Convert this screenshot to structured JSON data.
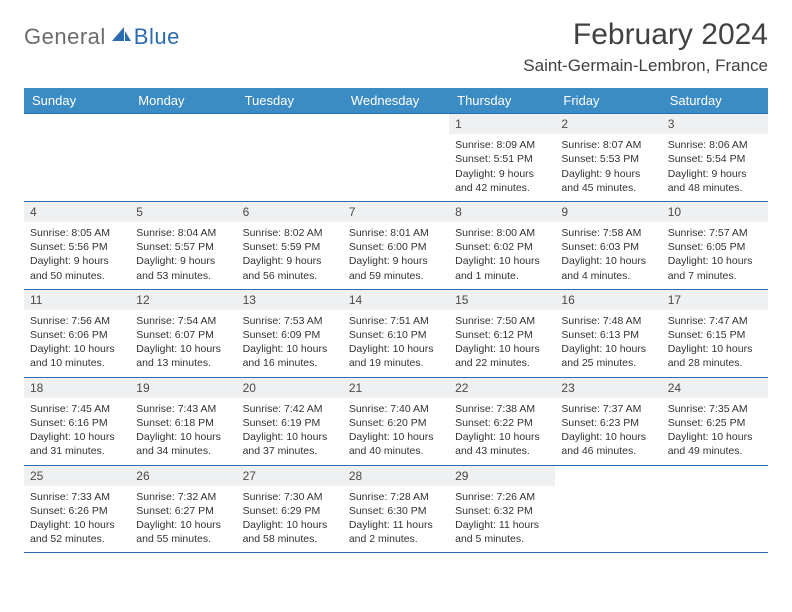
{
  "logo": {
    "general": "General",
    "blue": "Blue"
  },
  "title": "February 2024",
  "location": "Saint-Germain-Lembron, France",
  "colors": {
    "header_bg": "#3b8bc4",
    "header_text": "#ffffff",
    "border": "#2b6cb0",
    "daynum_bg": "#eef0f1",
    "text": "#333333",
    "title_text": "#414141"
  },
  "weekdays": [
    "Sunday",
    "Monday",
    "Tuesday",
    "Wednesday",
    "Thursday",
    "Friday",
    "Saturday"
  ],
  "weeks": [
    {
      "nums": [
        "",
        "",
        "",
        "",
        "1",
        "2",
        "3"
      ],
      "cells": [
        null,
        null,
        null,
        null,
        {
          "sunrise": "Sunrise: 8:09 AM",
          "sunset": "Sunset: 5:51 PM",
          "day1": "Daylight: 9 hours",
          "day2": "and 42 minutes."
        },
        {
          "sunrise": "Sunrise: 8:07 AM",
          "sunset": "Sunset: 5:53 PM",
          "day1": "Daylight: 9 hours",
          "day2": "and 45 minutes."
        },
        {
          "sunrise": "Sunrise: 8:06 AM",
          "sunset": "Sunset: 5:54 PM",
          "day1": "Daylight: 9 hours",
          "day2": "and 48 minutes."
        }
      ]
    },
    {
      "nums": [
        "4",
        "5",
        "6",
        "7",
        "8",
        "9",
        "10"
      ],
      "cells": [
        {
          "sunrise": "Sunrise: 8:05 AM",
          "sunset": "Sunset: 5:56 PM",
          "day1": "Daylight: 9 hours",
          "day2": "and 50 minutes."
        },
        {
          "sunrise": "Sunrise: 8:04 AM",
          "sunset": "Sunset: 5:57 PM",
          "day1": "Daylight: 9 hours",
          "day2": "and 53 minutes."
        },
        {
          "sunrise": "Sunrise: 8:02 AM",
          "sunset": "Sunset: 5:59 PM",
          "day1": "Daylight: 9 hours",
          "day2": "and 56 minutes."
        },
        {
          "sunrise": "Sunrise: 8:01 AM",
          "sunset": "Sunset: 6:00 PM",
          "day1": "Daylight: 9 hours",
          "day2": "and 59 minutes."
        },
        {
          "sunrise": "Sunrise: 8:00 AM",
          "sunset": "Sunset: 6:02 PM",
          "day1": "Daylight: 10 hours",
          "day2": "and 1 minute."
        },
        {
          "sunrise": "Sunrise: 7:58 AM",
          "sunset": "Sunset: 6:03 PM",
          "day1": "Daylight: 10 hours",
          "day2": "and 4 minutes."
        },
        {
          "sunrise": "Sunrise: 7:57 AM",
          "sunset": "Sunset: 6:05 PM",
          "day1": "Daylight: 10 hours",
          "day2": "and 7 minutes."
        }
      ]
    },
    {
      "nums": [
        "11",
        "12",
        "13",
        "14",
        "15",
        "16",
        "17"
      ],
      "cells": [
        {
          "sunrise": "Sunrise: 7:56 AM",
          "sunset": "Sunset: 6:06 PM",
          "day1": "Daylight: 10 hours",
          "day2": "and 10 minutes."
        },
        {
          "sunrise": "Sunrise: 7:54 AM",
          "sunset": "Sunset: 6:07 PM",
          "day1": "Daylight: 10 hours",
          "day2": "and 13 minutes."
        },
        {
          "sunrise": "Sunrise: 7:53 AM",
          "sunset": "Sunset: 6:09 PM",
          "day1": "Daylight: 10 hours",
          "day2": "and 16 minutes."
        },
        {
          "sunrise": "Sunrise: 7:51 AM",
          "sunset": "Sunset: 6:10 PM",
          "day1": "Daylight: 10 hours",
          "day2": "and 19 minutes."
        },
        {
          "sunrise": "Sunrise: 7:50 AM",
          "sunset": "Sunset: 6:12 PM",
          "day1": "Daylight: 10 hours",
          "day2": "and 22 minutes."
        },
        {
          "sunrise": "Sunrise: 7:48 AM",
          "sunset": "Sunset: 6:13 PM",
          "day1": "Daylight: 10 hours",
          "day2": "and 25 minutes."
        },
        {
          "sunrise": "Sunrise: 7:47 AM",
          "sunset": "Sunset: 6:15 PM",
          "day1": "Daylight: 10 hours",
          "day2": "and 28 minutes."
        }
      ]
    },
    {
      "nums": [
        "18",
        "19",
        "20",
        "21",
        "22",
        "23",
        "24"
      ],
      "cells": [
        {
          "sunrise": "Sunrise: 7:45 AM",
          "sunset": "Sunset: 6:16 PM",
          "day1": "Daylight: 10 hours",
          "day2": "and 31 minutes."
        },
        {
          "sunrise": "Sunrise: 7:43 AM",
          "sunset": "Sunset: 6:18 PM",
          "day1": "Daylight: 10 hours",
          "day2": "and 34 minutes."
        },
        {
          "sunrise": "Sunrise: 7:42 AM",
          "sunset": "Sunset: 6:19 PM",
          "day1": "Daylight: 10 hours",
          "day2": "and 37 minutes."
        },
        {
          "sunrise": "Sunrise: 7:40 AM",
          "sunset": "Sunset: 6:20 PM",
          "day1": "Daylight: 10 hours",
          "day2": "and 40 minutes."
        },
        {
          "sunrise": "Sunrise: 7:38 AM",
          "sunset": "Sunset: 6:22 PM",
          "day1": "Daylight: 10 hours",
          "day2": "and 43 minutes."
        },
        {
          "sunrise": "Sunrise: 7:37 AM",
          "sunset": "Sunset: 6:23 PM",
          "day1": "Daylight: 10 hours",
          "day2": "and 46 minutes."
        },
        {
          "sunrise": "Sunrise: 7:35 AM",
          "sunset": "Sunset: 6:25 PM",
          "day1": "Daylight: 10 hours",
          "day2": "and 49 minutes."
        }
      ]
    },
    {
      "nums": [
        "25",
        "26",
        "27",
        "28",
        "29",
        "",
        ""
      ],
      "cells": [
        {
          "sunrise": "Sunrise: 7:33 AM",
          "sunset": "Sunset: 6:26 PM",
          "day1": "Daylight: 10 hours",
          "day2": "and 52 minutes."
        },
        {
          "sunrise": "Sunrise: 7:32 AM",
          "sunset": "Sunset: 6:27 PM",
          "day1": "Daylight: 10 hours",
          "day2": "and 55 minutes."
        },
        {
          "sunrise": "Sunrise: 7:30 AM",
          "sunset": "Sunset: 6:29 PM",
          "day1": "Daylight: 10 hours",
          "day2": "and 58 minutes."
        },
        {
          "sunrise": "Sunrise: 7:28 AM",
          "sunset": "Sunset: 6:30 PM",
          "day1": "Daylight: 11 hours",
          "day2": "and 2 minutes."
        },
        {
          "sunrise": "Sunrise: 7:26 AM",
          "sunset": "Sunset: 6:32 PM",
          "day1": "Daylight: 11 hours",
          "day2": "and 5 minutes."
        },
        null,
        null
      ]
    }
  ]
}
